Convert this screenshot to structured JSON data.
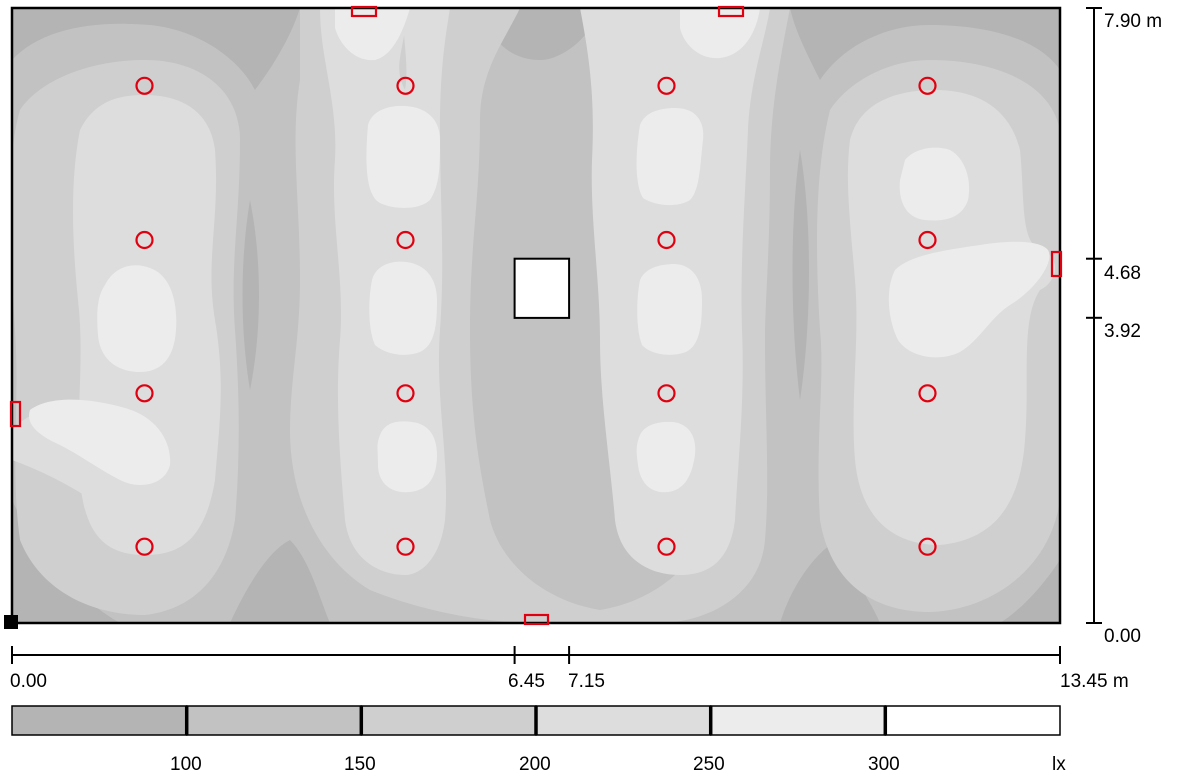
{
  "room": {
    "x_dimension_labels": [
      "0.00",
      "6.45",
      "7.15",
      "13.45 m"
    ],
    "y_dimension_labels": [
      "0.00",
      "3.92",
      "4.68",
      "7.90 m"
    ]
  },
  "luminaires": {
    "columns_x_m": [
      1.7,
      5.05,
      8.4,
      11.75
    ],
    "rows_y_m": [
      0.98,
      2.95,
      4.92,
      6.9
    ]
  },
  "obstacle": {
    "x_range_m": [
      6.45,
      7.15
    ],
    "y_range_m": [
      3.92,
      4.68
    ]
  },
  "legend": {
    "unit": "lx",
    "thresholds": [
      "100",
      "150",
      "200",
      "250",
      "300"
    ],
    "bands": [
      {
        "color": "#b4b4b4"
      },
      {
        "color": "#c2c2c2"
      },
      {
        "color": "#cfcfcf"
      },
      {
        "color": "#dddddd"
      },
      {
        "color": "#ececec"
      },
      {
        "color": "#ffffff"
      }
    ]
  },
  "colors": {
    "luminaire": "#e0000f",
    "outline": "#000000"
  }
}
